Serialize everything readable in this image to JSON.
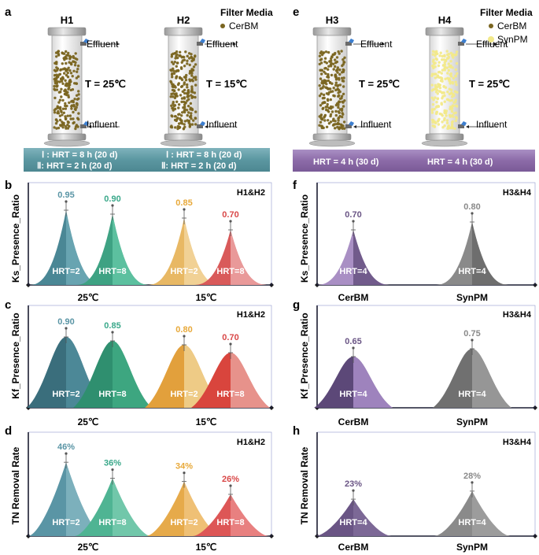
{
  "panels": {
    "a": {
      "letter": "a",
      "reactors": [
        {
          "name": "H1",
          "temp": "T = 25℃",
          "effluent": "Effluent",
          "influent": "Influent"
        },
        {
          "name": "H2",
          "temp": "T = 15℃",
          "effluent": "Effluent",
          "influent": "Influent"
        }
      ],
      "legend_title": "Filter Media",
      "legend_items": [
        {
          "label": "CerBM",
          "color": "#7a6520"
        }
      ],
      "banner_color": "#5b97a1",
      "banner": [
        [
          "Ⅰ : HRT = 8 h (20 d)",
          "Ⅱ: HRT = 2 h (20 d)"
        ],
        [
          "Ⅰ : HRT = 8 h (20 d)",
          "Ⅱ: HRT = 2 h (20 d)"
        ]
      ]
    },
    "e": {
      "letter": "e",
      "reactors": [
        {
          "name": "H3",
          "temp": "T = 25℃",
          "effluent": "Effluent",
          "influent": "Influent"
        },
        {
          "name": "H4",
          "temp": "T = 25℃",
          "effluent": "Effluent",
          "influent": "Influent"
        }
      ],
      "legend_title": "Filter Media",
      "legend_items": [
        {
          "label": "CerBM",
          "color": "#7a6520"
        },
        {
          "label": "SynPM",
          "color": "#f2e98a"
        }
      ],
      "banner_color": "#8c6ba8",
      "banner": [
        "HRT = 4 h (30 d)",
        "HRT = 4 h (30 d)"
      ]
    },
    "b": {
      "letter": "b",
      "ylabel": "Ks_Presence_Ratio",
      "tag": "H1&H2",
      "peaks": [
        {
          "value": "0.95",
          "hrt": "HRT=2",
          "color": "#4a8795",
          "light": "#6ba7b4"
        },
        {
          "value": "0.90",
          "hrt": "HRT=8",
          "color": "#3ea283",
          "light": "#5fc3a2"
        },
        {
          "value": "0.85",
          "hrt": "HRT=2",
          "color": "#e8b864",
          "light": "#f2d49a"
        },
        {
          "value": "0.70",
          "hrt": "HRT=8",
          "color": "#d95a5a",
          "light": "#eaa0a0"
        }
      ],
      "xlabels": [
        "25℃",
        "15℃"
      ]
    },
    "c": {
      "letter": "c",
      "ylabel": "Kf_Presence_Ratio",
      "tag": "H1&H2",
      "peaks": [
        {
          "value": "0.90",
          "hrt": "HRT=2",
          "color": "#3a6e7c",
          "light": "#4f8b9a"
        },
        {
          "value": "0.85",
          "hrt": "HRT=8",
          "color": "#2f8f6f",
          "light": "#3fa882"
        },
        {
          "value": "0.80",
          "hrt": "HRT=2",
          "color": "#e2a03c",
          "light": "#f0cf8e"
        },
        {
          "value": "0.70",
          "hrt": "HRT=8",
          "color": "#d9453d",
          "light": "#e89a93"
        }
      ],
      "xlabels": [
        "25℃",
        "15℃"
      ]
    },
    "d": {
      "letter": "d",
      "ylabel": "TN Removal Rate",
      "tag": "H1&H2",
      "peaks": [
        {
          "value": "46%",
          "hrt": "HRT=2",
          "color": "#5a95a5",
          "light": "#7fb2bf"
        },
        {
          "value": "36%",
          "hrt": "HRT=8",
          "color": "#4fb493",
          "light": "#74c9ad"
        },
        {
          "value": "34%",
          "hrt": "HRT=2",
          "color": "#e6aa4a",
          "light": "#efc27a"
        },
        {
          "value": "26%",
          "hrt": "HRT=8",
          "color": "#dd5656",
          "light": "#e98585"
        }
      ],
      "xlabels": [
        "25℃",
        "15℃"
      ]
    },
    "f": {
      "letter": "f",
      "ylabel": "Ks_Presence_Ratio",
      "tag": "H3&H4",
      "peaks": [
        {
          "value": "0.70",
          "hrt": "HRT=4",
          "color": "#a98fc4",
          "light": "#6a5585"
        },
        {
          "value": "0.80",
          "hrt": "HRT=4",
          "color": "#8a8a8a",
          "light": "#6a6a6a"
        }
      ],
      "xlabels": [
        "CerBM",
        "SynPM"
      ]
    },
    "g": {
      "letter": "g",
      "ylabel": "Kf_Presence_Ratio",
      "tag": "H3&H4",
      "peaks": [
        {
          "value": "0.65",
          "hrt": "HRT=4",
          "color": "#5c4878",
          "light": "#a58ac4"
        },
        {
          "value": "0.75",
          "hrt": "HRT=4",
          "color": "#707070",
          "light": "#9a9a9a"
        }
      ],
      "xlabels": [
        "CerBM",
        "SynPM"
      ]
    },
    "h": {
      "letter": "h",
      "ylabel": "TN Removal Rate",
      "tag": "H3&H4",
      "peaks": [
        {
          "value": "23%",
          "hrt": "HRT=4",
          "color": "#6a5585",
          "light": "#7e6a98"
        },
        {
          "value": "28%",
          "hrt": "HRT=4",
          "color": "#8a8a8a",
          "light": "#9d9d9d"
        }
      ],
      "xlabels": [
        "CerBM",
        "SynPM"
      ]
    }
  },
  "value_colors": {
    "b": [
      "#5a95a5",
      "#3aa88a",
      "#e8a93a",
      "#d94848"
    ],
    "c": [
      "#5a95a5",
      "#3aa88a",
      "#e8a93a",
      "#d94848"
    ],
    "d": [
      "#5a95a5",
      "#3aa88a",
      "#e8a93a",
      "#d94848"
    ],
    "f": [
      "#6a5585",
      "#8a8a8a"
    ],
    "g": [
      "#6a5585",
      "#8a8a8a"
    ],
    "h": [
      "#6a5585",
      "#8a8a8a"
    ]
  },
  "peak_heights": {
    "b": [
      0.95,
      0.9,
      0.85,
      0.7
    ],
    "c": [
      0.9,
      0.85,
      0.8,
      0.7
    ],
    "d": [
      46,
      36,
      34,
      26
    ],
    "f": [
      0.7,
      0.8
    ],
    "g": [
      0.65,
      0.75
    ],
    "h": [
      23,
      28
    ]
  }
}
